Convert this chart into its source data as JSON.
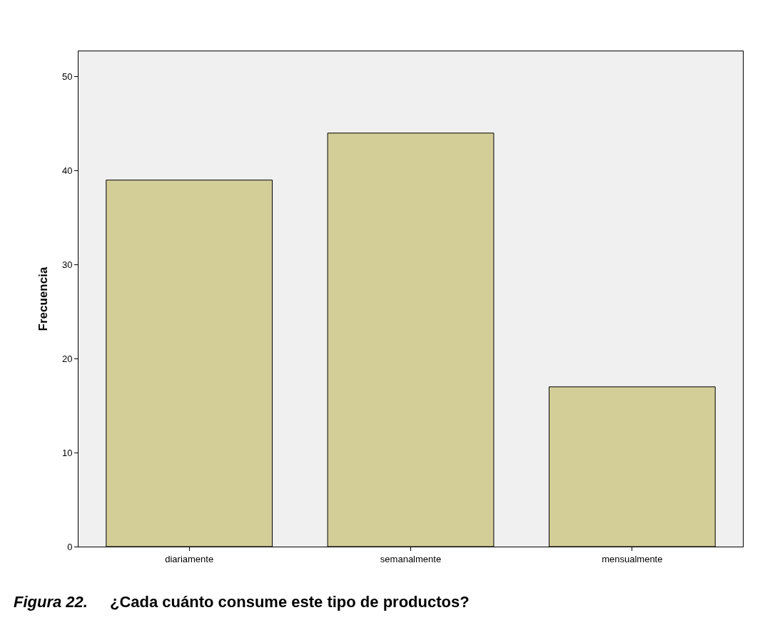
{
  "chart_data": {
    "type": "bar",
    "ylabel": "Frecuencia",
    "categories": [
      "diariamente",
      "semanalmente",
      "mensualmente"
    ],
    "values": [
      39,
      44,
      17
    ],
    "color": "#d3ce97",
    "ylim": [
      0,
      52.7
    ],
    "yticks": [
      0,
      10,
      20,
      30,
      40,
      50
    ],
    "grid": false,
    "annotations": [
      "Figura 22.",
      "¿Cada cuánto consume este tipo de productos?"
    ]
  }
}
